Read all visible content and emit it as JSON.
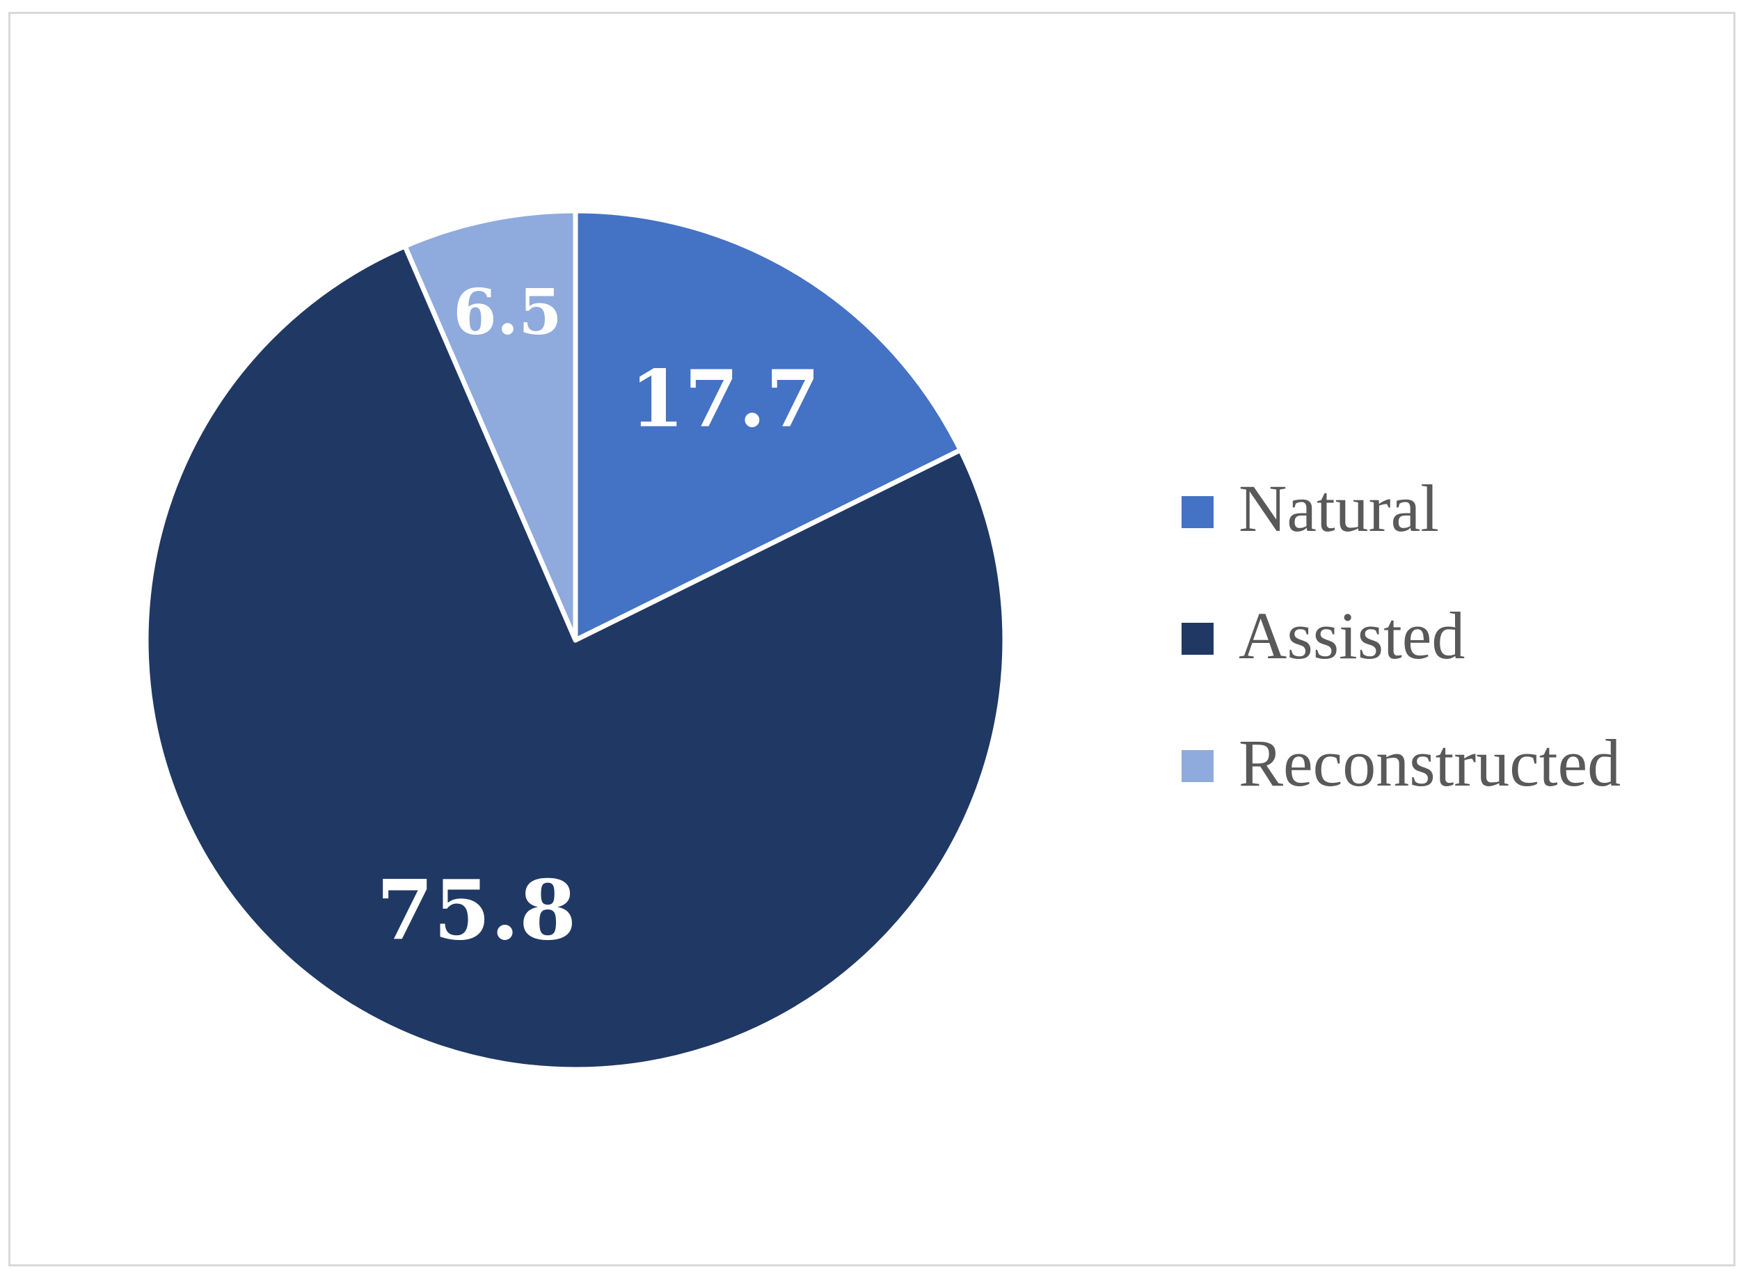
{
  "chart_data": {
    "type": "pie",
    "categories": [
      "Natural",
      "Assisted",
      "Reconstructed"
    ],
    "values": [
      17.7,
      75.8,
      6.5
    ],
    "data_labels": [
      "17.7",
      "75.8",
      "6.5"
    ],
    "colors": [
      "#4472C4",
      "#203864",
      "#8FAADC"
    ],
    "start_angle_deg": 0,
    "direction": "clockwise",
    "legend": {
      "position": "right",
      "entries": [
        "Natural",
        "Assisted",
        "Reconstructed"
      ]
    }
  }
}
